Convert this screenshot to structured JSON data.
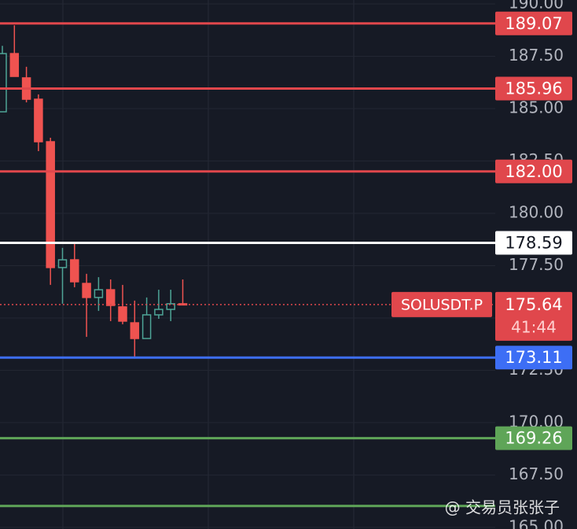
{
  "chart_data": {
    "type": "candlestick",
    "up_color": "#4ea597",
    "down_color": "#ef5350",
    "open": [
      184.85,
      187.63,
      186.47,
      185.45,
      183.42,
      177.41,
      177.78,
      176.65,
      175.98,
      176.35,
      175.53,
      174.77,
      174.02,
      175.15,
      175.41,
      175.68
    ],
    "high": [
      188.0,
      188.98,
      187.0,
      185.68,
      183.61,
      178.35,
      178.61,
      177.11,
      176.95,
      176.84,
      176.58,
      175.83,
      175.98,
      176.35,
      176.35,
      176.84
    ],
    "low": [
      184.85,
      186.54,
      185.3,
      182.97,
      176.58,
      175.68,
      176.47,
      174.1,
      175.34,
      174.85,
      174.7,
      173.16,
      174.02,
      174.96,
      174.85,
      175.6
    ],
    "close": [
      187.63,
      186.54,
      185.45,
      183.42,
      177.41,
      177.78,
      176.73,
      175.98,
      176.35,
      175.6,
      174.85,
      174.02,
      175.15,
      175.41,
      175.68,
      175.64
    ],
    "ylim": [
      164.92,
      190.19
    ],
    "yticks": [
      {
        "value": 190,
        "label": "190.00"
      },
      {
        "value": 187.5,
        "label": "187.50"
      },
      {
        "value": 185,
        "label": "185.00"
      },
      {
        "value": 182.5,
        "label": "182.50"
      },
      {
        "value": 180,
        "label": "180.00"
      },
      {
        "value": 177.5,
        "label": "177.50"
      },
      {
        "value": 175,
        "label": "175.00"
      },
      {
        "value": 172.5,
        "label": "172.50"
      },
      {
        "value": 170,
        "label": "170.00"
      },
      {
        "value": 167.5,
        "label": "167.50"
      },
      {
        "value": 165,
        "label": "165.00"
      }
    ],
    "levels": [
      {
        "value": 189.07,
        "label": "189.07",
        "color": "#e0474c"
      },
      {
        "value": 185.96,
        "label": "185.96",
        "color": "#e0474c"
      },
      {
        "value": 182,
        "label": "182.00",
        "color": "#e0474c"
      },
      {
        "value": 178.59,
        "label": "178.59",
        "color": "#ffffff"
      },
      {
        "value": 173.11,
        "label": "173.11",
        "color": "#3d6ef5"
      },
      {
        "value": 169.26,
        "label": "169.26",
        "color": "#5fa558"
      },
      {
        "value": 166.02,
        "color": "#5fa558"
      }
    ],
    "last_price": {
      "value": 175.64,
      "symbol": "SOLUSDT.P",
      "countdown": "41:44",
      "color": "#e0474c"
    },
    "watermark": "@ 交易员张张子"
  }
}
